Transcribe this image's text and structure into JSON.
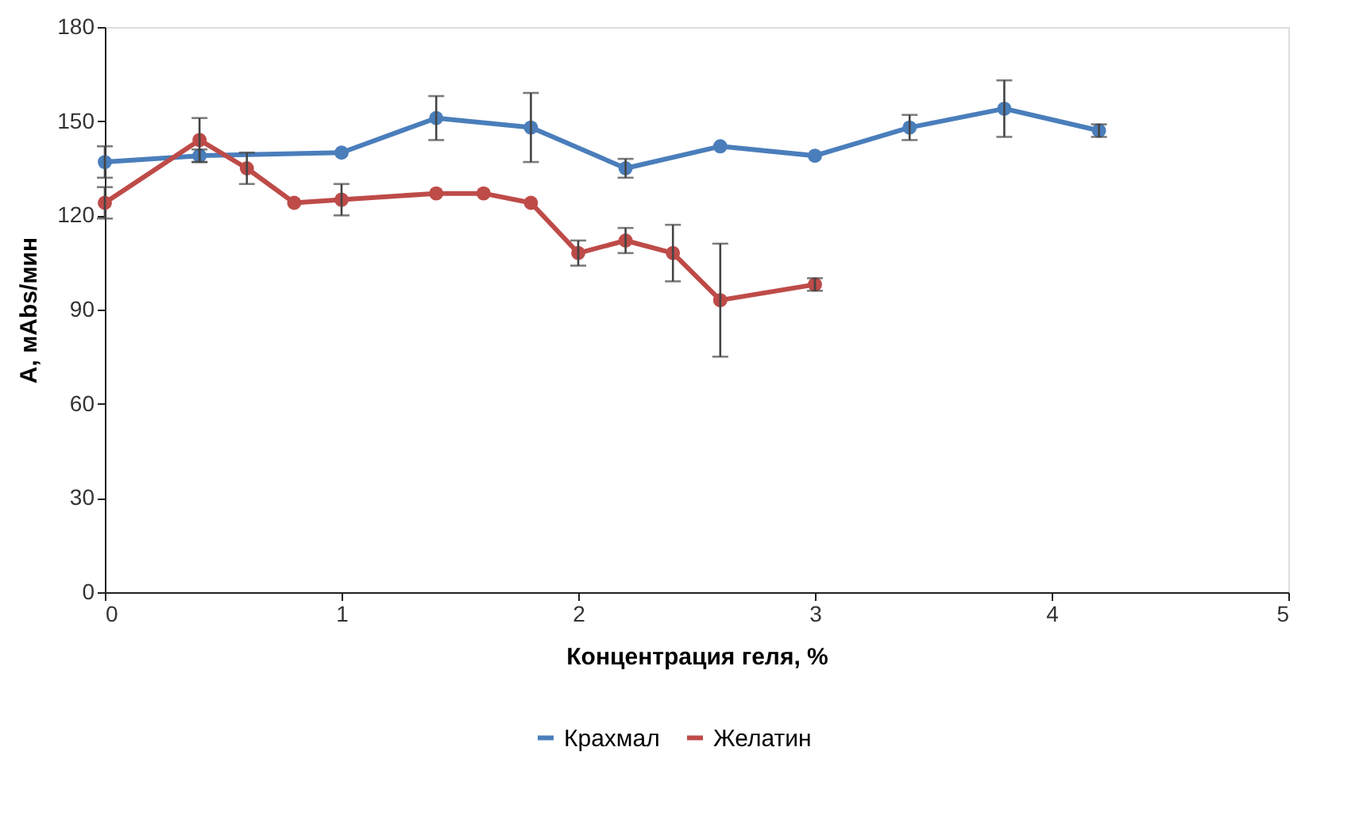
{
  "chart_data": {
    "type": "line",
    "xlabel": "Концентрация геля, %",
    "ylabel": "A, мAbs/мин",
    "xlim": [
      0,
      5
    ],
    "xticks": [
      0,
      1,
      2,
      3,
      4,
      5
    ],
    "ylim": [
      0,
      180
    ],
    "yticks": [
      0,
      30,
      60,
      90,
      120,
      150,
      180
    ],
    "grid": false,
    "legend": "bottom",
    "marker": "circle",
    "line_style": "solid",
    "series": [
      {
        "name": "Крахмал",
        "color": "#4a7ebb",
        "x": [
          0,
          0.4,
          1,
          1.4,
          1.8,
          2.2,
          2.6,
          3,
          3.4,
          3.8,
          4.2
        ],
        "values": [
          137,
          139,
          140,
          151,
          148,
          135,
          142,
          139,
          148,
          154,
          147
        ],
        "errors": [
          5,
          2,
          null,
          7,
          11,
          3,
          null,
          null,
          4,
          9,
          2
        ]
      },
      {
        "name": "Желатин",
        "color": "#be4b48",
        "x": [
          0,
          0.4,
          0.6,
          0.8,
          1,
          1.4,
          1.6,
          1.8,
          2,
          2.2,
          2.4,
          2.6,
          3
        ],
        "values": [
          124,
          144,
          135,
          124,
          125,
          127,
          127,
          124,
          108,
          112,
          108,
          93,
          98
        ],
        "errors": [
          5,
          7,
          5,
          null,
          5,
          null,
          null,
          null,
          4,
          4,
          9,
          18,
          2
        ]
      }
    ]
  }
}
